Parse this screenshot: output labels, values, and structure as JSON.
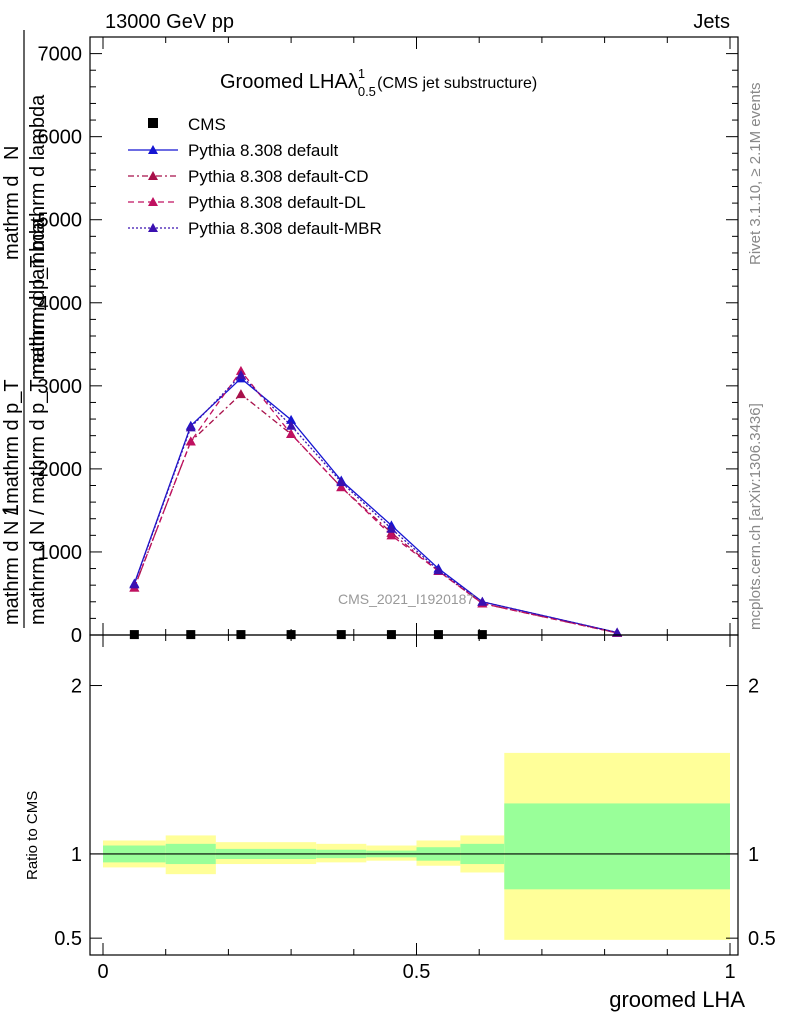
{
  "header": {
    "left": "13000 GeV pp",
    "right": "Jets"
  },
  "side_labels": {
    "rivet": "Rivet 3.1.10, ≥ 2.1M events",
    "mcplots": "mcplots.cern.ch [arXiv:1306.3436]"
  },
  "watermark": "CMS_2021_I1920187",
  "chart_data": [
    {
      "type": "line",
      "panel": "main",
      "title": {
        "main": "Groomed LHAλ",
        "sup": "1",
        "sub": "0.5",
        "suffix": "(CMS jet substructure)"
      },
      "ylabel": {
        "num": "1",
        "frac_top": "mathrm d N / mathrm d p_T",
        "frac_bottom": "mathrm d N / mathrm d p_T mathrm d lambda"
      },
      "ylabel_num_top": "mathrm d",
      "ylabel_num_N": "N",
      "ylabel_den": "mathrm d p_T mathrm d lambda",
      "xlim": [
        -0.04,
        1.03
      ],
      "ylim": [
        0,
        7200
      ],
      "yticks": [
        0,
        1000,
        2000,
        3000,
        4000,
        5000,
        6000,
        7000
      ],
      "ytick_labels": [
        "0",
        "1000",
        "2000",
        "3000",
        "4000",
        "5000",
        "6000",
        "7000"
      ],
      "x": [
        0.05,
        0.14,
        0.22,
        0.3,
        0.38,
        0.46,
        0.535,
        0.605,
        0.82
      ],
      "cms_x": [
        0.05,
        0.14,
        0.22,
        0.3,
        0.38,
        0.46,
        0.535,
        0.605
      ],
      "cms_y": [
        5,
        5,
        5,
        5,
        5,
        5,
        5,
        5
      ],
      "series": [
        {
          "name": "Pythia 8.308 default",
          "color": "#1515d2",
          "dash": "",
          "values": [
            620,
            2520,
            3090,
            2590,
            1860,
            1320,
            800,
            400,
            30
          ]
        },
        {
          "name": "Pythia 8.308 default-CD",
          "color": "#a8104a",
          "dash": "6,3,2,3",
          "values": [
            570,
            2330,
            2900,
            2420,
            1780,
            1230,
            770,
            380,
            25
          ]
        },
        {
          "name": "Pythia 8.308 default-DL",
          "color": "#c01060",
          "dash": "6,4",
          "values": [
            570,
            2330,
            3180,
            2420,
            1780,
            1200,
            770,
            380,
            25
          ]
        },
        {
          "name": "Pythia 8.308 default-MBR",
          "color": "#3a10b0",
          "dash": "2,2",
          "values": [
            610,
            2500,
            3130,
            2520,
            1840,
            1280,
            780,
            400,
            30
          ]
        }
      ],
      "legend": {
        "data_label": "CMS"
      }
    },
    {
      "type": "area",
      "panel": "ratio",
      "ylabel": "Ratio to CMS",
      "xlabel": "groomed LHA",
      "ylim": [
        0.4,
        2.3
      ],
      "yticks": [
        0.5,
        1,
        2
      ],
      "ytick_labels": [
        "0.5",
        "1",
        "2"
      ],
      "xticks": [
        0,
        0.5,
        1
      ],
      "xtick_labels": [
        "0",
        "0.5",
        "1"
      ],
      "bins": [
        {
          "x0": 0.0,
          "x1": 0.1,
          "stat": [
            0.95,
            1.05
          ],
          "total": [
            0.92,
            1.08
          ]
        },
        {
          "x0": 0.1,
          "x1": 0.18,
          "stat": [
            0.94,
            1.06
          ],
          "total": [
            0.88,
            1.11
          ]
        },
        {
          "x0": 0.18,
          "x1": 0.26,
          "stat": [
            0.97,
            1.03
          ],
          "total": [
            0.94,
            1.07
          ]
        },
        {
          "x0": 0.26,
          "x1": 0.34,
          "stat": [
            0.97,
            1.03
          ],
          "total": [
            0.94,
            1.07
          ]
        },
        {
          "x0": 0.34,
          "x1": 0.42,
          "stat": [
            0.975,
            1.025
          ],
          "total": [
            0.95,
            1.06
          ]
        },
        {
          "x0": 0.42,
          "x1": 0.5,
          "stat": [
            0.98,
            1.02
          ],
          "total": [
            0.96,
            1.05
          ]
        },
        {
          "x0": 0.5,
          "x1": 0.57,
          "stat": [
            0.96,
            1.04
          ],
          "total": [
            0.93,
            1.08
          ]
        },
        {
          "x0": 0.57,
          "x1": 0.64,
          "stat": [
            0.94,
            1.06
          ],
          "total": [
            0.89,
            1.11
          ]
        },
        {
          "x0": 0.64,
          "x1": 1.0,
          "stat": [
            0.79,
            1.3
          ],
          "total": [
            0.49,
            1.6
          ]
        }
      ],
      "colors": {
        "stat": "#99ff99",
        "total": "#ffff99"
      }
    }
  ]
}
